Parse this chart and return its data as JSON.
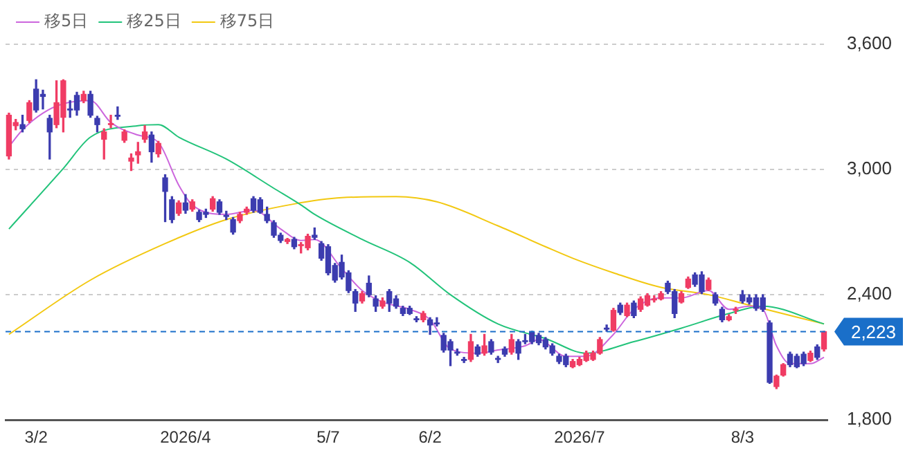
{
  "chart_data": {
    "type": "candlestick",
    "categories": [
      null,
      null,
      null,
      null,
      "3/2",
      null,
      null,
      null,
      null,
      null,
      null,
      null,
      null,
      null,
      null,
      null,
      null,
      null,
      null,
      null,
      null,
      null,
      null,
      null,
      null,
      null,
      "2026/4",
      null,
      null,
      null,
      null,
      null,
      null,
      null,
      null,
      null,
      null,
      null,
      null,
      null,
      null,
      null,
      null,
      null,
      null,
      null,
      null,
      "5/7",
      null,
      null,
      null,
      null,
      null,
      null,
      null,
      null,
      null,
      null,
      null,
      null,
      null,
      null,
      "6/2",
      null,
      null,
      null,
      null,
      null,
      null,
      null,
      null,
      null,
      null,
      null,
      null,
      null,
      null,
      null,
      null,
      null,
      null,
      null,
      null,
      null,
      "2026/7",
      null,
      null,
      null,
      null,
      null,
      null,
      null,
      null,
      null,
      null,
      null,
      null,
      null,
      null,
      null,
      null,
      null,
      null,
      null,
      null,
      null,
      null,
      null,
      "8/3",
      null,
      null,
      null,
      null,
      null,
      null,
      null,
      null,
      null,
      null,
      null,
      null
    ],
    "ohlc": [
      [
        3065,
        3270,
        3050,
        3260
      ],
      [
        3210,
        3240,
        3190,
        3225
      ],
      [
        3215,
        3260,
        3180,
        3195
      ],
      [
        3235,
        3330,
        3225,
        3320
      ],
      [
        3385,
        3430,
        3275,
        3285
      ],
      [
        3360,
        3380,
        3290,
        3350
      ],
      [
        3245,
        3260,
        3050,
        3180
      ],
      [
        3215,
        3425,
        3200,
        3320
      ],
      [
        3250,
        3430,
        3180,
        3425
      ],
      [
        3290,
        3330,
        3250,
        3285
      ],
      [
        3355,
        3370,
        3260,
        3285
      ],
      [
        3330,
        3375,
        3320,
        3360
      ],
      [
        3360,
        3375,
        3250,
        3260
      ],
      [
        3245,
        3255,
        3180,
        3215
      ],
      [
        3145,
        3195,
        3050,
        3180
      ],
      [
        3215,
        3260,
        3200,
        3220
      ],
      [
        3260,
        3300,
        3240,
        3255
      ],
      [
        3140,
        3190,
        3130,
        3180
      ],
      [
        3040,
        3075,
        2995,
        3055
      ],
      [
        3070,
        3130,
        3030,
        3085
      ],
      [
        3145,
        3210,
        3130,
        3180
      ],
      [
        3165,
        3180,
        3035,
        3085
      ],
      [
        3075,
        3135,
        3060,
        3125
      ],
      [
        2960,
        2975,
        2750,
        2895
      ],
      [
        2855,
        2870,
        2745,
        2760
      ],
      [
        2790,
        2850,
        2780,
        2840
      ],
      [
        2840,
        2880,
        2790,
        2805
      ],
      [
        2810,
        2855,
        2800,
        2845
      ],
      [
        2795,
        2805,
        2750,
        2760
      ],
      [
        2795,
        2810,
        2770,
        2785
      ],
      [
        2810,
        2870,
        2800,
        2860
      ],
      [
        2845,
        2855,
        2785,
        2795
      ],
      [
        2780,
        2800,
        2760,
        2775
      ],
      [
        2760,
        2770,
        2690,
        2700
      ],
      [
        2755,
        2795,
        2745,
        2785
      ],
      [
        2795,
        2820,
        2785,
        2810
      ],
      [
        2860,
        2870,
        2795,
        2805
      ],
      [
        2855,
        2865,
        2790,
        2795
      ],
      [
        2785,
        2820,
        2745,
        2755
      ],
      [
        2745,
        2755,
        2675,
        2685
      ],
      [
        2685,
        2695,
        2650,
        2660
      ],
      [
        2655,
        2670,
        2645,
        2665
      ],
      [
        2665,
        2675,
        2620,
        2630
      ],
      [
        2635,
        2650,
        2600,
        2640
      ],
      [
        2625,
        2690,
        2615,
        2680
      ],
      [
        2685,
        2720,
        2665,
        2675
      ],
      [
        2645,
        2655,
        2565,
        2575
      ],
      [
        2630,
        2640,
        2495,
        2505
      ],
      [
        2540,
        2550,
        2460,
        2470
      ],
      [
        2555,
        2590,
        2475,
        2485
      ],
      [
        2505,
        2515,
        2410,
        2420
      ],
      [
        2415,
        2425,
        2320,
        2360
      ],
      [
        2370,
        2415,
        2360,
        2405
      ],
      [
        2455,
        2490,
        2390,
        2400
      ],
      [
        2380,
        2395,
        2320,
        2345
      ],
      [
        2345,
        2385,
        2335,
        2370
      ],
      [
        2415,
        2425,
        2320,
        2360
      ],
      [
        2380,
        2395,
        2335,
        2345
      ],
      [
        2335,
        2345,
        2300,
        2310
      ],
      [
        2335,
        2345,
        2305,
        2310
      ],
      [
        2285,
        2295,
        2270,
        2280
      ],
      [
        2280,
        2320,
        2270,
        2310
      ],
      [
        2280,
        2290,
        2210,
        2255
      ],
      [
        2265,
        2290,
        2250,
        2260
      ],
      [
        2205,
        2215,
        2125,
        2135
      ],
      [
        2175,
        2185,
        2060,
        2135
      ],
      [
        2125,
        2140,
        2110,
        2120
      ],
      [
        2090,
        2100,
        2075,
        2085
      ],
      [
        2090,
        2210,
        2080,
        2175
      ],
      [
        2150,
        2160,
        2105,
        2115
      ],
      [
        2120,
        2210,
        2110,
        2155
      ],
      [
        2175,
        2185,
        2115,
        2125
      ],
      [
        2095,
        2105,
        2075,
        2090
      ],
      [
        2140,
        2150,
        2105,
        2115
      ],
      [
        2125,
        2210,
        2115,
        2185
      ],
      [
        2175,
        2185,
        2090,
        2120
      ],
      [
        2180,
        2210,
        2165,
        2175
      ],
      [
        2220,
        2225,
        2165,
        2175
      ],
      [
        2205,
        2215,
        2160,
        2170
      ],
      [
        2185,
        2195,
        2140,
        2150
      ],
      [
        2155,
        2165,
        2110,
        2120
      ],
      [
        2105,
        2115,
        2070,
        2080
      ],
      [
        2105,
        2115,
        2055,
        2065
      ],
      [
        2055,
        2090,
        2050,
        2080
      ],
      [
        2065,
        2100,
        2060,
        2090
      ],
      [
        2085,
        2130,
        2080,
        2120
      ],
      [
        2090,
        2130,
        2085,
        2120
      ],
      [
        2120,
        2195,
        2115,
        2185
      ],
      [
        2240,
        2255,
        2225,
        2235
      ],
      [
        2230,
        2335,
        2225,
        2325
      ],
      [
        2350,
        2360,
        2305,
        2315
      ],
      [
        2300,
        2360,
        2295,
        2350
      ],
      [
        2360,
        2370,
        2290,
        2300
      ],
      [
        2330,
        2390,
        2320,
        2380
      ],
      [
        2350,
        2405,
        2345,
        2395
      ],
      [
        2375,
        2395,
        2365,
        2380
      ],
      [
        2380,
        2415,
        2375,
        2405
      ],
      [
        2455,
        2465,
        2405,
        2415
      ],
      [
        2415,
        2425,
        2290,
        2310
      ],
      [
        2365,
        2415,
        2360,
        2405
      ],
      [
        2435,
        2485,
        2430,
        2475
      ],
      [
        2495,
        2505,
        2440,
        2450
      ],
      [
        2495,
        2510,
        2405,
        2415
      ],
      [
        2425,
        2480,
        2420,
        2470
      ],
      [
        2400,
        2410,
        2350,
        2360
      ],
      [
        2330,
        2340,
        2270,
        2280
      ],
      [
        2280,
        2305,
        2275,
        2295
      ],
      [
        2325,
        2340,
        2310,
        2330
      ],
      [
        2400,
        2420,
        2360,
        2370
      ],
      [
        2385,
        2400,
        2355,
        2365
      ],
      [
        2385,
        2400,
        2325,
        2335
      ],
      [
        2385,
        2400,
        2320,
        2330
      ],
      [
        2265,
        2275,
        1975,
        1980
      ],
      [
        1960,
        2015,
        1950,
        2010
      ],
      [
        2015,
        2070,
        2010,
        2065
      ],
      [
        2115,
        2125,
        2055,
        2065
      ],
      [
        2105,
        2115,
        2050,
        2055
      ],
      [
        2115,
        2125,
        2060,
        2070
      ],
      [
        2085,
        2130,
        2080,
        2120
      ],
      [
        2150,
        2160,
        2090,
        2100
      ],
      [
        2140,
        2225,
        2130,
        2223
      ]
    ],
    "colors": [
      "#f03c64",
      "#f03c64",
      "#3c3caf",
      "#f03c64",
      "#3c3caf",
      "#3c3caf",
      "#3c3caf",
      "#f03c64",
      "#f03c64",
      "#3c3caf",
      "#3c3caf",
      "#f03c64",
      "#3c3caf",
      "#3c3caf",
      "#f03c64",
      "#f03c64",
      "#3c3caf",
      "#f03c64",
      "#f03c64",
      "#f03c64",
      "#f03c64",
      "#3c3caf",
      "#f03c64",
      "#3c3caf",
      "#3c3caf",
      "#f03c64",
      "#3c3caf",
      "#f03c64",
      "#3c3caf",
      "#3c3caf",
      "#f03c64",
      "#3c3caf",
      "#3c3caf",
      "#3c3caf",
      "#f03c64",
      "#f03c64",
      "#3c3caf",
      "#3c3caf",
      "#3c3caf",
      "#3c3caf",
      "#3c3caf",
      "#f03c64",
      "#3c3caf",
      "#f03c64",
      "#f03c64",
      "#3c3caf",
      "#3c3caf",
      "#3c3caf",
      "#3c3caf",
      "#3c3caf",
      "#3c3caf",
      "#3c3caf",
      "#f03c64",
      "#3c3caf",
      "#3c3caf",
      "#f03c64",
      "#3c3caf",
      "#3c3caf",
      "#3c3caf",
      "#3c3caf",
      "#3c3caf",
      "#f03c64",
      "#3c3caf",
      "#3c3caf",
      "#3c3caf",
      "#3c3caf",
      "#3c3caf",
      "#3c3caf",
      "#f03c64",
      "#3c3caf",
      "#f03c64",
      "#3c3caf",
      "#3c3caf",
      "#3c3caf",
      "#f03c64",
      "#3c3caf",
      "#3c3caf",
      "#3c3caf",
      "#3c3caf",
      "#3c3caf",
      "#3c3caf",
      "#3c3caf",
      "#3c3caf",
      "#f03c64",
      "#f03c64",
      "#f03c64",
      "#f03c64",
      "#f03c64",
      "#3c3caf",
      "#f03c64",
      "#3c3caf",
      "#f03c64",
      "#3c3caf",
      "#f03c64",
      "#f03c64",
      "#f03c64",
      "#f03c64",
      "#3c3caf",
      "#3c3caf",
      "#f03c64",
      "#f03c64",
      "#3c3caf",
      "#3c3caf",
      "#f03c64",
      "#3c3caf",
      "#3c3caf",
      "#f03c64",
      "#f03c64",
      "#3c3caf",
      "#3c3caf",
      "#3c3caf",
      "#3c3caf",
      "#3c3caf",
      "#f03c64",
      "#f03c64",
      "#3c3caf",
      "#3c3caf",
      "#3c3caf",
      "#f03c64",
      "#3c3caf",
      "#f03c64"
    ],
    "series": [
      {
        "name": "移5日",
        "type": "line",
        "color": "#cc66dd",
        "values": [
          3110,
          null,
          3190,
          null,
          null,
          3270,
          null,
          null,
          3315,
          null,
          null,
          null,
          3330,
          null,
          null,
          3225,
          null,
          null,
          null,
          3165,
          null,
          null,
          3130,
          null,
          null,
          2925,
          null,
          2830,
          null,
          null,
          null,
          null,
          2785,
          null,
          null,
          null,
          2805,
          null,
          null,
          null,
          2715,
          null,
          null,
          2660,
          null,
          2665,
          null,
          null,
          null,
          2525,
          null,
          null,
          2420,
          null,
          null,
          2365,
          null,
          null,
          null,
          2330,
          null,
          null,
          2280,
          null,
          null,
          2140,
          null,
          null,
          null,
          2120,
          null,
          null,
          2135,
          null,
          null,
          null,
          2155,
          null,
          2185,
          null,
          null,
          null,
          2105,
          null,
          null,
          2105,
          null,
          null,
          null,
          2210,
          null,
          null,
          2330,
          null,
          null,
          null,
          2385,
          null,
          null,
          2385,
          null,
          null,
          null,
          2420,
          null,
          null,
          2330,
          null,
          null,
          2345,
          null,
          2330,
          null,
          2155,
          null,
          2070,
          null,
          null,
          2070,
          null,
          2100
        ]
      },
      {
        "name": "移25日",
        "type": "line",
        "color": "#22c37a",
        "values": [
          2715,
          null,
          null,
          null,
          null,
          null,
          null,
          null,
          3005,
          null,
          null,
          null,
          3155,
          null,
          null,
          null,
          null,
          null,
          null,
          3210,
          null,
          null,
          3215,
          null,
          null,
          3155,
          null,
          null,
          null,
          null,
          null,
          null,
          3050,
          null,
          null,
          null,
          null,
          null,
          null,
          2910,
          null,
          null,
          null,
          2830,
          null,
          2785,
          null,
          null,
          null,
          null,
          null,
          null,
          2665,
          null,
          null,
          null,
          null,
          null,
          null,
          2555,
          null,
          null,
          null,
          null,
          null,
          2400,
          null,
          null,
          null,
          null,
          null,
          null,
          2260,
          null,
          null,
          null,
          null,
          null,
          null,
          2190,
          null,
          null,
          null,
          null,
          null,
          2120,
          null,
          null,
          null,
          null,
          null,
          null,
          2175,
          null,
          null,
          null,
          null,
          null,
          null,
          2240,
          null,
          null,
          null,
          null,
          null,
          null,
          2310,
          null,
          null,
          null,
          null,
          2345,
          null,
          null,
          null,
          null,
          null,
          null,
          null,
          null,
          2260
        ]
      },
      {
        "name": "移75日",
        "type": "line",
        "color": "#f2c811",
        "values": [
          2210,
          null,
          null,
          null,
          null,
          null,
          null,
          null,
          null,
          null,
          null,
          null,
          2470,
          null,
          null,
          null,
          null,
          null,
          null,
          null,
          null,
          null,
          null,
          2645,
          null,
          null,
          null,
          null,
          null,
          null,
          null,
          null,
          2760,
          null,
          null,
          null,
          null,
          null,
          null,
          null,
          null,
          null,
          2835,
          null,
          null,
          null,
          null,
          null,
          null,
          2865,
          null,
          null,
          null,
          null,
          null,
          null,
          null,
          2870,
          null,
          null,
          null,
          null,
          null,
          2845,
          null,
          null,
          null,
          null,
          null,
          null,
          null,
          null,
          2730,
          null,
          null,
          null,
          null,
          null,
          null,
          2630,
          null,
          null,
          null,
          2575,
          null,
          null,
          null,
          null,
          null,
          2505,
          null,
          null,
          null,
          null,
          null,
          null,
          2435,
          null,
          null,
          null,
          null,
          null,
          null,
          2400,
          null,
          null,
          null,
          null,
          null,
          2350,
          null,
          null,
          null,
          null,
          null,
          null,
          null,
          null,
          null,
          null,
          2260
        ]
      }
    ],
    "ylim": [
      1800,
      3600
    ],
    "yticks": [
      {
        "value": 1800,
        "label": "1,800"
      },
      {
        "value": 2400,
        "label": "2,400"
      },
      {
        "value": 3000,
        "label": "3,000"
      },
      {
        "value": 3600,
        "label": "3,600"
      }
    ],
    "ref_lines": [
      {
        "axis": "y",
        "value": 2223,
        "label": "2,223",
        "color": "#1a6fc9",
        "line_style": "dashed"
      }
    ],
    "grid": "y",
    "legend": "top left",
    "marker": "none",
    "line_style": "solid"
  }
}
